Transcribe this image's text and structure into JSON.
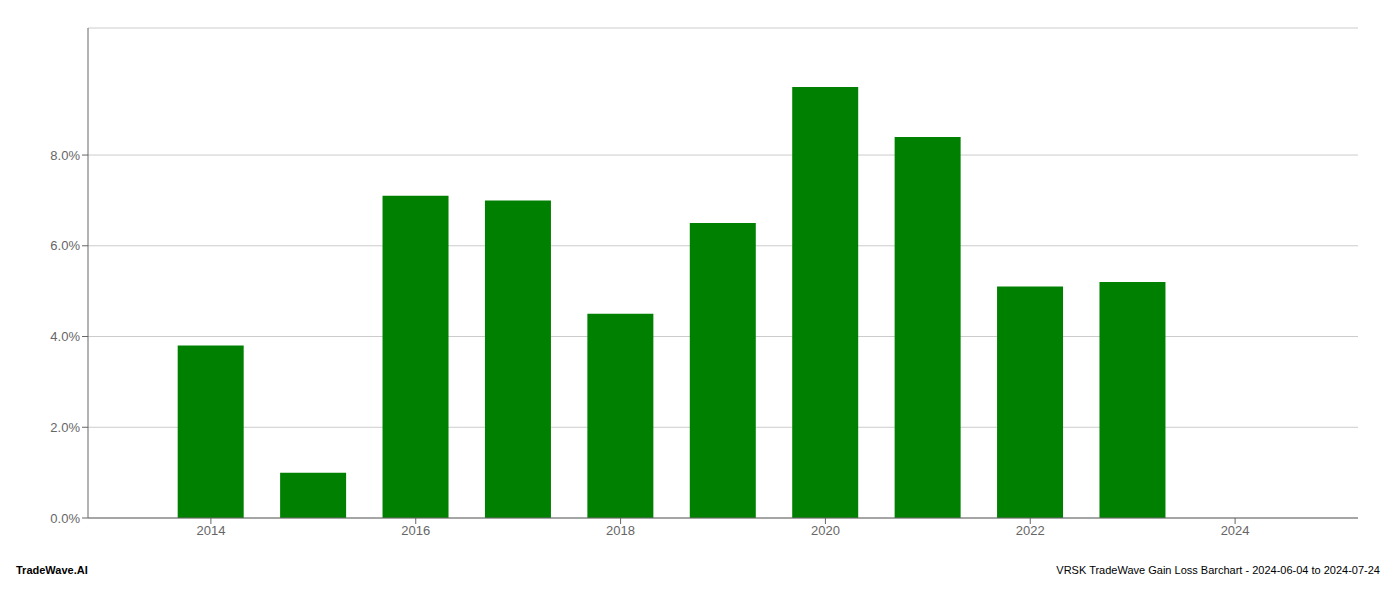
{
  "chart_data": {
    "type": "bar",
    "x": [
      2014,
      2015,
      2016,
      2017,
      2018,
      2019,
      2020,
      2021,
      2022,
      2023
    ],
    "values": [
      0.038,
      0.01,
      0.071,
      0.07,
      0.045,
      0.065,
      0.095,
      0.084,
      0.051,
      0.052
    ],
    "color": "#008000",
    "xlim": [
      2012.8,
      2025.2
    ],
    "xticks": [
      2014,
      2016,
      2018,
      2020,
      2022,
      2024
    ],
    "ylim": [
      0,
      0.108
    ],
    "yticks": [
      {
        "value": 0.0,
        "label": "0.0%"
      },
      {
        "value": 0.02,
        "label": "2.0%"
      },
      {
        "value": 0.04,
        "label": "4.0%"
      },
      {
        "value": 0.06,
        "label": "6.0%"
      },
      {
        "value": 0.08,
        "label": "8.0%"
      }
    ],
    "grid": true,
    "annotations": [
      "TradeWave.AI",
      "VRSK TradeWave Gain Loss Barchart - 2024-06-04 to 2024-07-24"
    ]
  }
}
